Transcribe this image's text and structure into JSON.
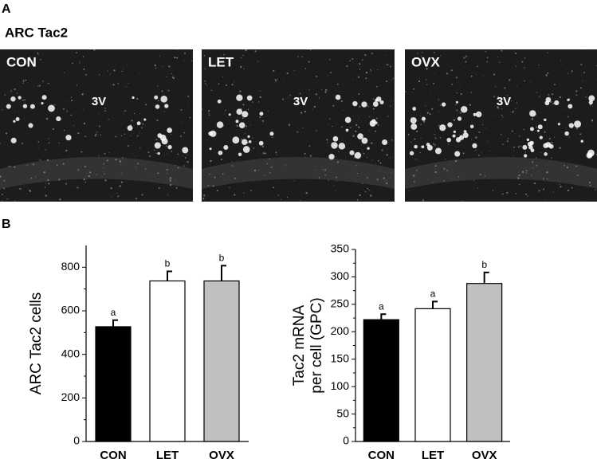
{
  "panel_a": {
    "label": "A",
    "title": "ARC Tac2",
    "images": [
      {
        "label": "CON",
        "landmark": "3V"
      },
      {
        "label": "LET",
        "landmark": "3V"
      },
      {
        "label": "OVX",
        "landmark": "3V"
      }
    ]
  },
  "panel_b": {
    "label": "B"
  },
  "chart_data": [
    {
      "type": "bar",
      "ylabel": [
        "ARC Tac2 cells"
      ],
      "categories": [
        "CON",
        "LET",
        "OVX"
      ],
      "values": [
        527,
        737,
        737
      ],
      "errors": [
        30,
        44,
        70
      ],
      "annotations": [
        "a",
        "b",
        "b"
      ],
      "colors": [
        "#000000",
        "#ffffff",
        "#c0c0c0"
      ],
      "ylim": [
        0,
        900
      ],
      "yticks": [
        0,
        200,
        400,
        600,
        800
      ],
      "minor_ticks": true
    },
    {
      "type": "bar",
      "ylabel": [
        "Tac2 mRNA",
        "per cell (GPC)"
      ],
      "categories": [
        "CON",
        "LET",
        "OVX"
      ],
      "values": [
        222,
        242,
        288
      ],
      "errors": [
        10,
        13,
        20
      ],
      "annotations": [
        "a",
        "a",
        "b"
      ],
      "colors": [
        "#000000",
        "#ffffff",
        "#c0c0c0"
      ],
      "ylim": [
        0,
        350
      ],
      "yticks": [
        0,
        50,
        100,
        150,
        200,
        250,
        300,
        350
      ],
      "minor_ticks": true
    }
  ]
}
